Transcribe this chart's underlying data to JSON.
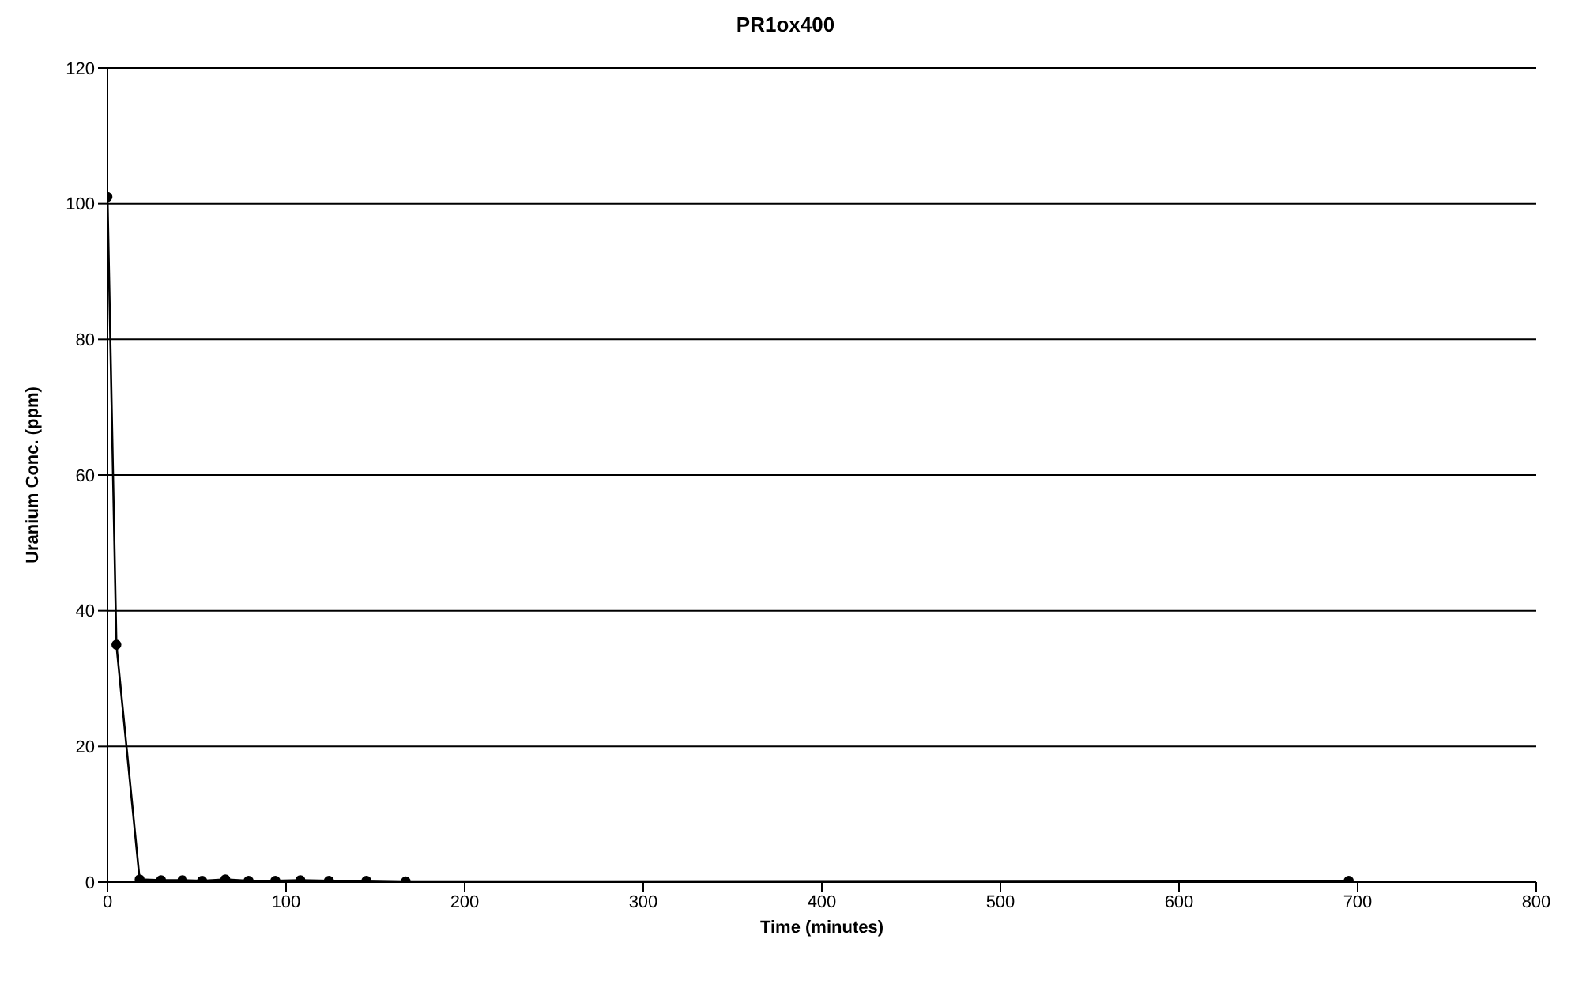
{
  "chart_data": {
    "type": "line",
    "title": "PR1ox400",
    "xlabel": "Time (minutes)",
    "ylabel": "Uranium Conc. (ppm)",
    "x": [
      0,
      5,
      18,
      30,
      42,
      53,
      66,
      79,
      94,
      108,
      124,
      145,
      167,
      695
    ],
    "values": [
      101,
      35,
      0.4,
      0.3,
      0.3,
      0.2,
      0.4,
      0.2,
      0.2,
      0.3,
      0.2,
      0.2,
      0.1,
      0.2
    ],
    "color": "#000000",
    "xlim": [
      0,
      800
    ],
    "xticks": [
      0,
      100,
      200,
      300,
      400,
      500,
      600,
      700,
      800
    ],
    "ylim": [
      0,
      120
    ],
    "yticks": [
      0,
      20,
      40,
      60,
      80,
      100,
      120
    ],
    "grid": "y",
    "marker": "circle",
    "line_style": "solid"
  }
}
